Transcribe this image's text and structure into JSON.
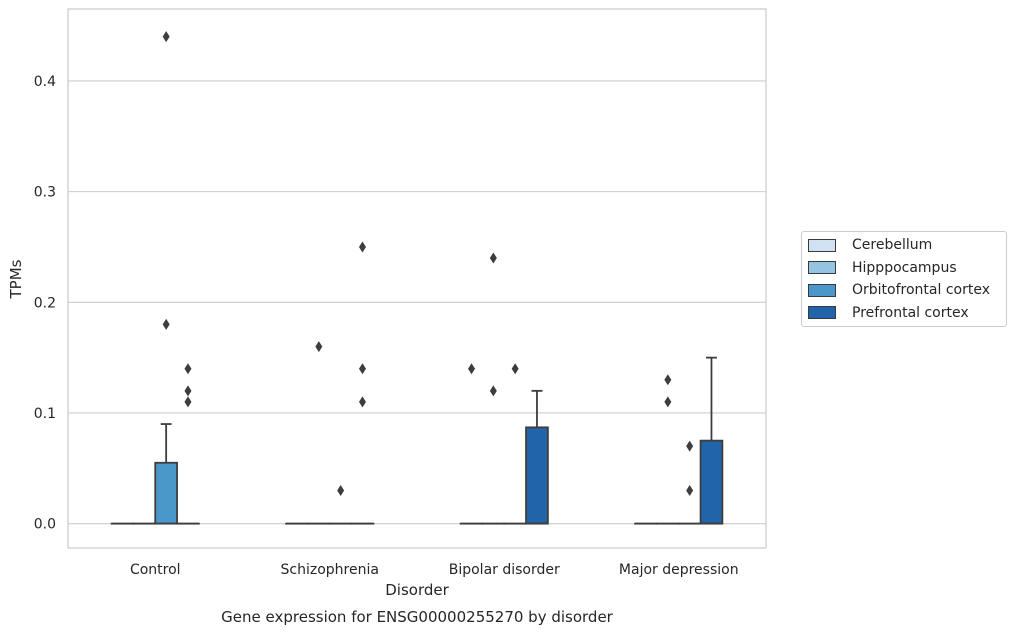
{
  "chart_data": {
    "type": "box",
    "title": "Gene expression for ENSG00000255270 by disorder",
    "xlabel": "Disorder",
    "ylabel": "TPMs",
    "ylim": [
      -0.022,
      0.465
    ],
    "yticks": [
      "0.0",
      "0.1",
      "0.2",
      "0.3",
      "0.4"
    ],
    "ytick_values": [
      0.0,
      0.1,
      0.2,
      0.3,
      0.4
    ],
    "categories": [
      "Control",
      "Schizophrenia",
      "Bipolar disorder",
      "Major depression"
    ],
    "grid": true,
    "legend_position": "right",
    "series": [
      {
        "name": "Cerebellum",
        "color": "#d0e1f2",
        "boxes": [
          {
            "category": "Control",
            "q1": 0,
            "median": 0,
            "q3": 0,
            "whisker_low": 0,
            "whisker_high": 0,
            "outliers": []
          },
          {
            "category": "Schizophrenia",
            "q1": 0,
            "median": 0,
            "q3": 0,
            "whisker_low": 0,
            "whisker_high": 0,
            "outliers": []
          },
          {
            "category": "Bipolar disorder",
            "q1": 0,
            "median": 0,
            "q3": 0,
            "whisker_low": 0,
            "whisker_high": 0,
            "outliers": [
              0.14
            ]
          },
          {
            "category": "Major depression",
            "q1": 0,
            "median": 0,
            "q3": 0,
            "whisker_low": 0,
            "whisker_high": 0,
            "outliers": []
          }
        ]
      },
      {
        "name": "Hipppocampus",
        "color": "#94c4df",
        "boxes": [
          {
            "category": "Control",
            "q1": 0,
            "median": 0,
            "q3": 0,
            "whisker_low": 0,
            "whisker_high": 0,
            "outliers": []
          },
          {
            "category": "Schizophrenia",
            "q1": 0,
            "median": 0,
            "q3": 0,
            "whisker_low": 0,
            "whisker_high": 0,
            "outliers": [
              0.16
            ]
          },
          {
            "category": "Bipolar disorder",
            "q1": 0,
            "median": 0,
            "q3": 0,
            "whisker_low": 0,
            "whisker_high": 0,
            "outliers": [
              0.24,
              0.12
            ]
          },
          {
            "category": "Major depression",
            "q1": 0,
            "median": 0,
            "q3": 0,
            "whisker_low": 0,
            "whisker_high": 0,
            "outliers": [
              0.13,
              0.11
            ]
          }
        ]
      },
      {
        "name": "Orbitofrontal cortex",
        "color": "#4a98c9",
        "boxes": [
          {
            "category": "Control",
            "q1": 0,
            "median": 0,
            "q3": 0.055,
            "whisker_low": 0,
            "whisker_high": 0.09,
            "outliers": [
              0.44,
              0.18
            ]
          },
          {
            "category": "Schizophrenia",
            "q1": 0,
            "median": 0,
            "q3": 0,
            "whisker_low": 0,
            "whisker_high": 0,
            "outliers": [
              0.03
            ]
          },
          {
            "category": "Bipolar disorder",
            "q1": 0,
            "median": 0,
            "q3": 0,
            "whisker_low": 0,
            "whisker_high": 0,
            "outliers": [
              0.14
            ]
          },
          {
            "category": "Major depression",
            "q1": 0,
            "median": 0,
            "q3": 0,
            "whisker_low": 0,
            "whisker_high": 0,
            "outliers": [
              0.07,
              0.03
            ]
          }
        ]
      },
      {
        "name": "Prefrontal cortex",
        "color": "#2164a9",
        "boxes": [
          {
            "category": "Control",
            "q1": 0,
            "median": 0,
            "q3": 0,
            "whisker_low": 0,
            "whisker_high": 0,
            "outliers": [
              0.14,
              0.12,
              0.11
            ]
          },
          {
            "category": "Schizophrenia",
            "q1": 0,
            "median": 0,
            "q3": 0,
            "whisker_low": 0,
            "whisker_high": 0,
            "outliers": [
              0.25,
              0.14,
              0.11
            ]
          },
          {
            "category": "Bipolar disorder",
            "q1": 0,
            "median": 0,
            "q3": 0.087,
            "whisker_low": 0,
            "whisker_high": 0.12,
            "outliers": []
          },
          {
            "category": "Major depression",
            "q1": 0,
            "median": 0,
            "q3": 0.075,
            "whisker_low": 0,
            "whisker_high": 0.15,
            "outliers": []
          }
        ]
      }
    ]
  }
}
